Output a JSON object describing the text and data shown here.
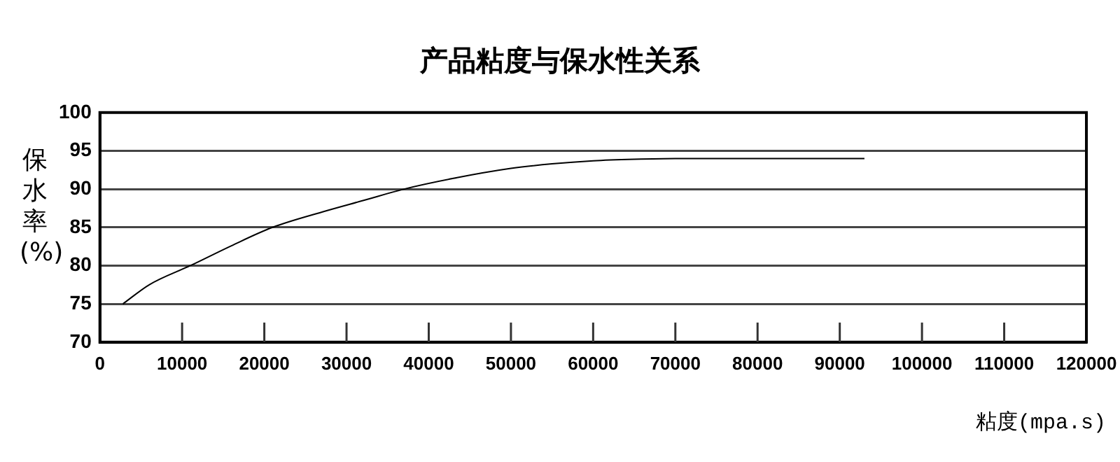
{
  "chart_data": {
    "type": "line",
    "title": "产品粘度与保水性关系",
    "xlabel": "粘度(mpa.s)",
    "ylabel": "保水率(%)",
    "series": [
      {
        "color": "#000000",
        "x": [
          2800,
          6000,
          11000,
          16000,
          21000,
          27000,
          32000,
          37000,
          43000,
          50000,
          55000,
          60000,
          65000,
          70000,
          80000,
          93000
        ],
        "values": [
          75,
          77.5,
          80,
          82.6,
          85,
          87,
          88.5,
          90,
          91.4,
          92.7,
          93.3,
          93.7,
          93.9,
          94,
          94,
          94
        ]
      }
    ],
    "xlim": [
      0,
      120000
    ],
    "xticks": [
      0,
      10000,
      20000,
      30000,
      40000,
      50000,
      60000,
      70000,
      80000,
      90000,
      100000,
      110000,
      120000
    ],
    "ylim": [
      70,
      100
    ],
    "yticks": [
      70,
      75,
      80,
      85,
      90,
      95,
      100
    ],
    "grid": "y",
    "legend": false,
    "marker": "none",
    "line_style": "solid"
  }
}
